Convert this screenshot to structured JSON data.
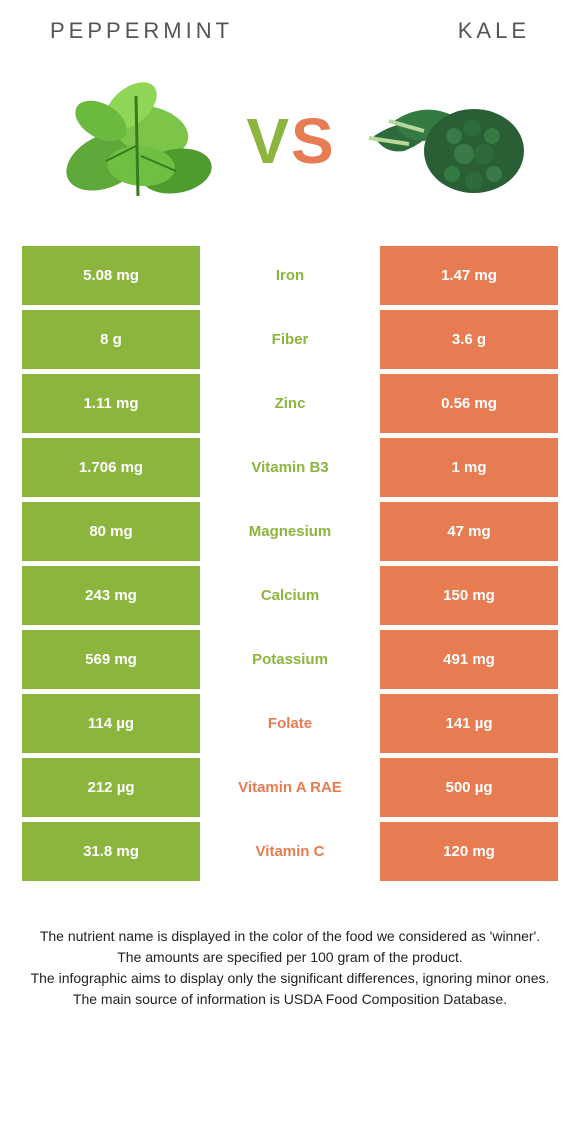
{
  "colors": {
    "left": "#8bb53d",
    "right": "#e77b51",
    "label_text": "#555555"
  },
  "foods": {
    "left": "Peppermint",
    "right": "Kale"
  },
  "vs": {
    "v": "V",
    "s": "S"
  },
  "rows": [
    {
      "left": "5.08 mg",
      "label": "Iron",
      "right": "1.47 mg",
      "winner": "left"
    },
    {
      "left": "8 g",
      "label": "Fiber",
      "right": "3.6 g",
      "winner": "left"
    },
    {
      "left": "1.11 mg",
      "label": "Zinc",
      "right": "0.56 mg",
      "winner": "left"
    },
    {
      "left": "1.706 mg",
      "label": "Vitamin B3",
      "right": "1 mg",
      "winner": "left"
    },
    {
      "left": "80 mg",
      "label": "Magnesium",
      "right": "47 mg",
      "winner": "left"
    },
    {
      "left": "243 mg",
      "label": "Calcium",
      "right": "150 mg",
      "winner": "left"
    },
    {
      "left": "569 mg",
      "label": "Potassium",
      "right": "491 mg",
      "winner": "left"
    },
    {
      "left": "114 µg",
      "label": "Folate",
      "right": "141 µg",
      "winner": "right"
    },
    {
      "left": "212 µg",
      "label": "Vitamin A RAE",
      "right": "500 µg",
      "winner": "right"
    },
    {
      "left": "31.8 mg",
      "label": "Vitamin C",
      "right": "120 mg",
      "winner": "right"
    }
  ],
  "footnotes": [
    "The nutrient name is displayed in the color of the food we considered as 'winner'.",
    "The amounts are specified per 100 gram of the product.",
    "The infographic aims to display only the significant differences, ignoring minor ones.",
    "The main source of information is USDA Food Composition Database."
  ]
}
